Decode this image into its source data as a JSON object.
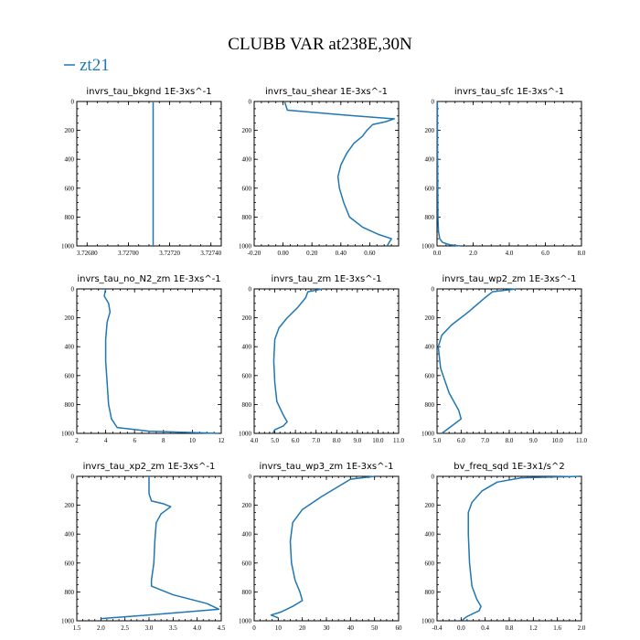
{
  "title": "CLUBB VAR at238E,30N",
  "legend": {
    "label": "zt21",
    "color": "#1f77b4"
  },
  "chart_data": [
    {
      "type": "line",
      "title": "invrs_tau_bkgnd",
      "units": "1E-3xs^-1",
      "xlim": [
        3.72675,
        3.72745
      ],
      "xticks": [
        3.7268,
        3.727,
        3.7272,
        3.7274
      ],
      "xtick_labels": [
        "3.72680",
        "3.72700",
        "3.72720",
        "3.72740"
      ],
      "ylim": [
        0,
        1000
      ],
      "yticks": [
        0,
        200,
        400,
        600,
        800,
        1000
      ],
      "ytick_labels": [
        "0",
        "200",
        "400",
        "600",
        "800",
        "1000"
      ],
      "series": [
        {
          "x": [
            3.72712,
            3.72712
          ],
          "y": [
            0,
            1000
          ]
        }
      ]
    },
    {
      "type": "line",
      "title": "invrs_tau_shear",
      "units": "1E-3xs^-1",
      "xlim": [
        -0.2,
        0.8
      ],
      "xticks": [
        -0.2,
        0.0,
        0.2,
        0.4,
        0.6
      ],
      "xtick_labels": [
        "-0.20",
        "0.00",
        "0.20",
        "0.40",
        "0.60"
      ],
      "ylim": [
        0,
        1000
      ],
      "yticks": [
        0,
        200,
        400,
        600,
        800,
        1000
      ],
      "ytick_labels": [
        "0",
        "200",
        "400",
        "600",
        "800",
        "1000"
      ],
      "series": [
        {
          "x": [
            0.01,
            0.03,
            0.5,
            0.77,
            0.71,
            0.62,
            0.58,
            0.55,
            0.49,
            0.44,
            0.4,
            0.38,
            0.39,
            0.42,
            0.46,
            0.55,
            0.66,
            0.75,
            0.72
          ],
          "y": [
            0,
            60,
            100,
            120,
            140,
            160,
            200,
            240,
            290,
            360,
            440,
            520,
            600,
            700,
            800,
            870,
            920,
            950,
            1000
          ]
        }
      ]
    },
    {
      "type": "line",
      "title": "invrs_tau_sfc",
      "units": "1E-3xs^-1",
      "xlim": [
        0,
        8
      ],
      "xticks": [
        0,
        2,
        4,
        6,
        8
      ],
      "xtick_labels": [
        "0.0",
        "2.0",
        "4.0",
        "6.0",
        "8.0"
      ],
      "ylim": [
        0,
        1000
      ],
      "yticks": [
        0,
        200,
        400,
        600,
        800,
        1000
      ],
      "ytick_labels": [
        "0",
        "200",
        "400",
        "600",
        "800",
        "1000"
      ],
      "series": [
        {
          "x": [
            0.02,
            0.03,
            0.05,
            0.08,
            0.15,
            0.3,
            0.7,
            1.3
          ],
          "y": [
            0,
            400,
            800,
            900,
            950,
            975,
            992,
            1000
          ]
        }
      ]
    },
    {
      "type": "line",
      "title": "invrs_tau_no_N2_zm",
      "units": "1E-3xs^-1",
      "xlim": [
        2,
        12
      ],
      "xticks": [
        2,
        4,
        6,
        8,
        10,
        12
      ],
      "xtick_labels": [
        "2",
        "4",
        "6",
        "8",
        "10",
        "12"
      ],
      "ylim": [
        0,
        1000
      ],
      "yticks": [
        0,
        200,
        400,
        600,
        800,
        1000
      ],
      "ytick_labels": [
        "0",
        "200",
        "400",
        "600",
        "800",
        "1000"
      ],
      "series": [
        {
          "x": [
            4.0,
            3.9,
            4.2,
            4.3,
            4.1,
            4.0,
            4.0,
            4.1,
            4.2,
            4.4,
            4.8,
            7.0,
            11.8
          ],
          "y": [
            0,
            50,
            100,
            160,
            230,
            350,
            500,
            650,
            800,
            900,
            960,
            985,
            1000
          ]
        }
      ]
    },
    {
      "type": "line",
      "title": "invrs_tau_zm",
      "units": "1E-3xs^-1",
      "xlim": [
        4,
        11
      ],
      "xticks": [
        4,
        5,
        6,
        7,
        8,
        9,
        10,
        11
      ],
      "xtick_labels": [
        "4.0",
        "5.0",
        "6.0",
        "7.0",
        "8.0",
        "9.0",
        "10.0",
        "11.0"
      ],
      "ylim": [
        0,
        1000
      ],
      "yticks": [
        0,
        200,
        400,
        600,
        800,
        1000
      ],
      "ytick_labels": [
        "0",
        "200",
        "400",
        "600",
        "800",
        "1000"
      ],
      "series": [
        {
          "x": [
            7.3,
            6.6,
            6.5,
            6.1,
            5.6,
            5.2,
            5.0,
            4.95,
            5.0,
            5.1,
            5.4,
            5.6,
            5.4,
            5.0,
            4.9
          ],
          "y": [
            0,
            20,
            60,
            130,
            200,
            270,
            350,
            500,
            650,
            780,
            870,
            920,
            950,
            975,
            1000
          ]
        }
      ]
    },
    {
      "type": "line",
      "title": "invrs_tau_wp2_zm",
      "units": "1E-3xs^-1",
      "xlim": [
        5,
        11
      ],
      "xticks": [
        5,
        6,
        7,
        8,
        9,
        10,
        11
      ],
      "xtick_labels": [
        "5.0",
        "6.0",
        "7.0",
        "8.0",
        "9.0",
        "10.0",
        "11.0"
      ],
      "ylim": [
        0,
        1000
      ],
      "yticks": [
        0,
        200,
        400,
        600,
        800,
        1000
      ],
      "ytick_labels": [
        "0",
        "200",
        "400",
        "600",
        "800",
        "1000"
      ],
      "series": [
        {
          "x": [
            8.3,
            7.3,
            7.0,
            6.3,
            5.6,
            5.2,
            5.05,
            5.15,
            5.5,
            5.9,
            6.0,
            5.6,
            5.2
          ],
          "y": [
            0,
            20,
            60,
            160,
            250,
            320,
            400,
            550,
            720,
            840,
            900,
            950,
            1000
          ]
        }
      ]
    },
    {
      "type": "line",
      "title": "invrs_tau_xp2_zm",
      "units": "1E-3xs^-1",
      "xlim": [
        1.5,
        4.5
      ],
      "xticks": [
        1.5,
        2.0,
        2.5,
        3.0,
        3.5,
        4.0,
        4.5
      ],
      "xtick_labels": [
        "1.5",
        "2.0",
        "2.5",
        "3.0",
        "3.5",
        "4.0",
        "4.5"
      ],
      "ylim": [
        0,
        1000
      ],
      "yticks": [
        0,
        200,
        400,
        600,
        800,
        1000
      ],
      "ytick_labels": [
        "0",
        "200",
        "400",
        "600",
        "800",
        "1000"
      ],
      "series": [
        {
          "x": [
            3.0,
            3.0,
            3.05,
            3.3,
            3.45,
            3.25,
            3.15,
            3.12,
            3.1,
            3.05,
            3.05,
            3.5,
            4.2,
            4.45,
            3.0,
            2.0
          ],
          "y": [
            0,
            120,
            170,
            190,
            210,
            260,
            320,
            450,
            600,
            720,
            760,
            820,
            880,
            920,
            960,
            985
          ]
        }
      ]
    },
    {
      "type": "line",
      "title": "invrs_tau_wp3_zm",
      "units": "1E-3xs^-1",
      "xlim": [
        0,
        60
      ],
      "xticks": [
        0,
        10,
        20,
        30,
        40,
        50,
        60
      ],
      "xtick_labels": [
        "0",
        "10",
        "20",
        "30",
        "40",
        "50",
        "60"
      ],
      "ylim": [
        0,
        1000
      ],
      "yticks": [
        0,
        200,
        400,
        600,
        800,
        1000
      ],
      "ytick_labels": [
        "0",
        "200",
        "400",
        "600",
        "800",
        "1000"
      ],
      "series": [
        {
          "x": [
            50,
            40,
            36,
            28,
            20,
            16,
            15,
            15.5,
            17,
            19,
            20,
            16,
            11,
            7,
            10
          ],
          "y": [
            0,
            20,
            60,
            140,
            230,
            320,
            450,
            600,
            720,
            800,
            860,
            900,
            940,
            960,
            980
          ]
        }
      ]
    },
    {
      "type": "line",
      "title": "bv_freq_sqd",
      "units": "1E-3x1/s^2",
      "xlim": [
        -0.4,
        2.0
      ],
      "xticks": [
        -0.4,
        0.0,
        0.4,
        0.8,
        1.2,
        1.6,
        2.0
      ],
      "xtick_labels": [
        "-0.4",
        "0.0",
        "0.4",
        "0.8",
        "1.2",
        "1.6",
        "2.0"
      ],
      "ylim": [
        0,
        1000
      ],
      "yticks": [
        0,
        200,
        400,
        600,
        800,
        1000
      ],
      "ytick_labels": [
        "0",
        "200",
        "400",
        "600",
        "800",
        "1000"
      ],
      "series": [
        {
          "x": [
            1.95,
            1.0,
            0.6,
            0.35,
            0.18,
            0.12,
            0.12,
            0.14,
            0.18,
            0.26,
            0.33,
            0.3,
            0.1,
            0.02
          ],
          "y": [
            0,
            10,
            40,
            100,
            180,
            250,
            400,
            600,
            760,
            850,
            900,
            930,
            970,
            995
          ]
        }
      ]
    }
  ]
}
